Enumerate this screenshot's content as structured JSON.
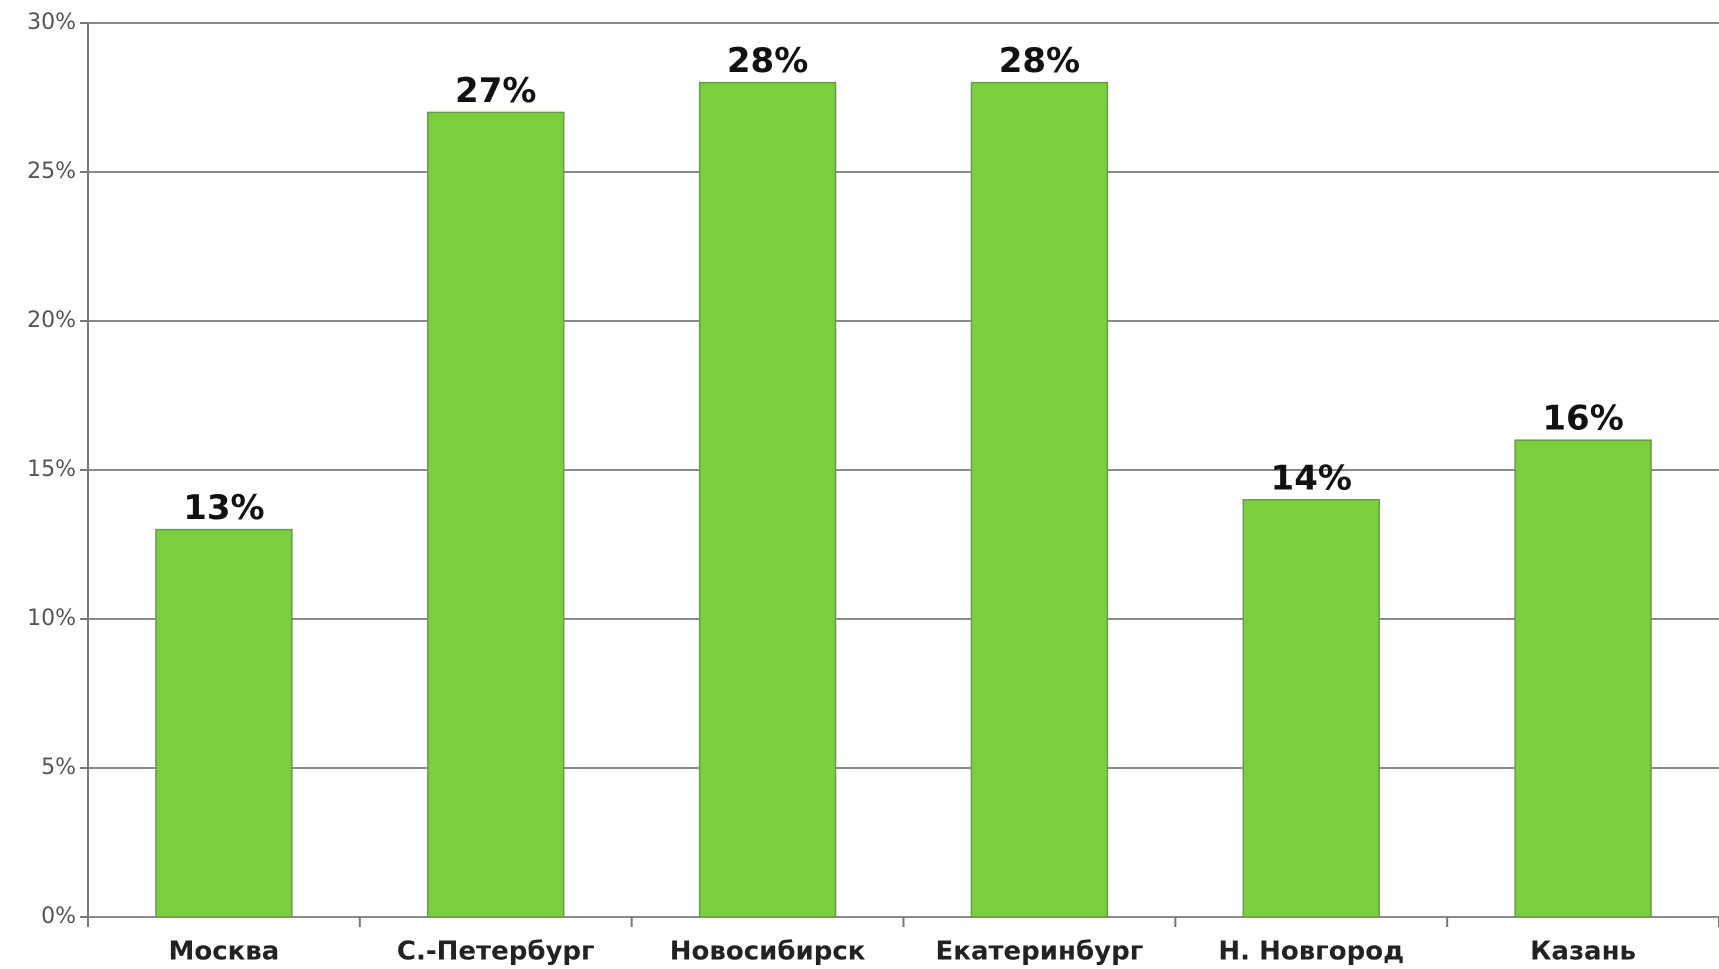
{
  "chart_data": {
    "type": "bar",
    "categories": [
      "Москва",
      "С.-Петербург",
      "Новосибирск",
      "Екатеринбург",
      "Н. Новгород",
      "Казань"
    ],
    "values": [
      13,
      27,
      28,
      28,
      14,
      16
    ],
    "value_labels": [
      "13%",
      "27%",
      "28%",
      "28%",
      "14%",
      "16%"
    ],
    "color": "#7ccf3c",
    "ylim": [
      0,
      30
    ],
    "yticks": [
      {
        "value": 0,
        "label": "0%"
      },
      {
        "value": 5,
        "label": "5%"
      },
      {
        "value": 10,
        "label": "10%"
      },
      {
        "value": 15,
        "label": "15%"
      },
      {
        "value": 20,
        "label": "20%"
      },
      {
        "value": 25,
        "label": "25%"
      },
      {
        "value": 30,
        "label": "30%"
      }
    ],
    "grid": true
  }
}
